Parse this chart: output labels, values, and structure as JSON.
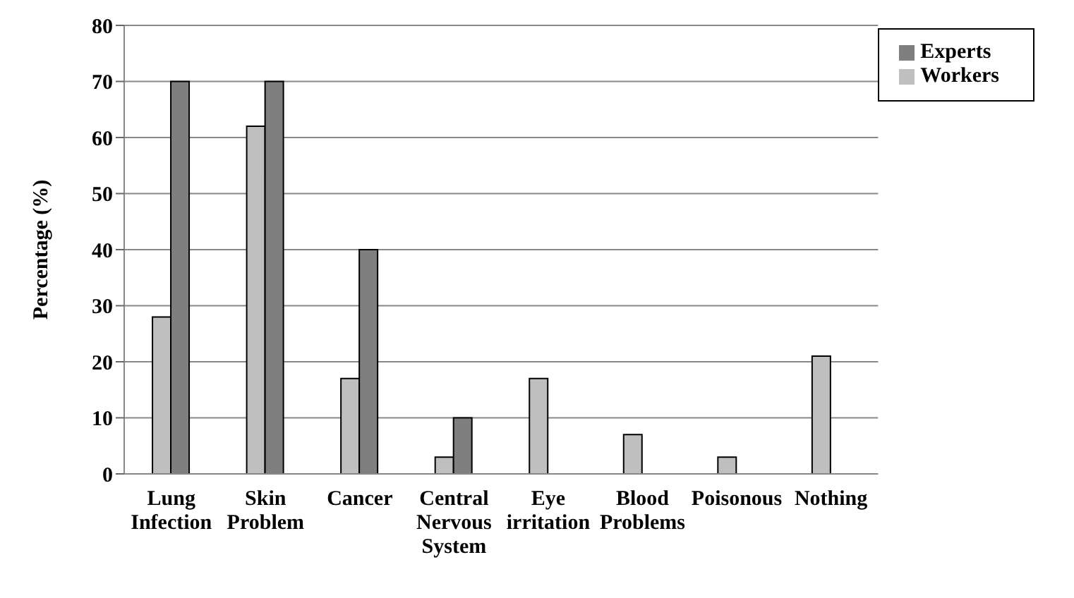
{
  "chart_data": {
    "type": "bar",
    "ylabel": "Percentage (%)",
    "categories": [
      "Lung Infection",
      "Skin Problem",
      "Cancer",
      "Central Nervous System",
      "Eye irritation",
      "Blood Problems",
      "Poisonous",
      "Nothing"
    ],
    "series": [
      {
        "name": "Workers",
        "color": "#bfbfbf",
        "values": [
          28,
          62,
          17,
          3,
          17,
          7,
          3,
          21
        ]
      },
      {
        "name": "Experts",
        "color": "#7f7f7f",
        "values": [
          70,
          70,
          40,
          10,
          null,
          null,
          null,
          null
        ]
      }
    ],
    "ylim": [
      0,
      80
    ],
    "yticks": [
      0,
      10,
      20,
      30,
      40,
      50,
      60,
      70,
      80
    ],
    "grid": "y",
    "legend": "top right"
  }
}
